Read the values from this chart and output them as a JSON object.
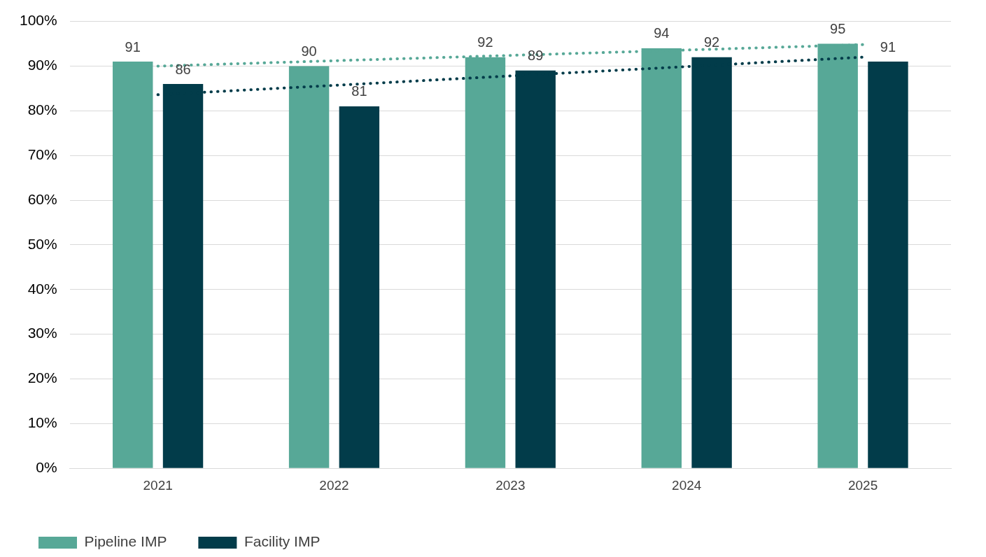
{
  "chart_data": {
    "type": "bar",
    "categories": [
      "2021",
      "2022",
      "2023",
      "2024",
      "2025"
    ],
    "series": [
      {
        "name": "Pipeline IMP",
        "color": "#57a897",
        "values": [
          91,
          90,
          92,
          94,
          95
        ],
        "value_labels": [
          "91",
          "90",
          "92",
          "94",
          "95"
        ]
      },
      {
        "name": "Facility IMP",
        "color": "#023c4a",
        "values": [
          86,
          81,
          89,
          92,
          91
        ],
        "value_labels": [
          "86",
          "81",
          "89",
          "92",
          "91"
        ]
      },
      {
        "type": "line",
        "color": "#57a897",
        "values": [
          90.0,
          null,
          null,
          null,
          94.8
        ],
        "line_style": "dotted",
        "marker": "none"
      },
      {
        "type": "line",
        "color": "#023c4a",
        "values": [
          83.6,
          null,
          null,
          null,
          92.0
        ],
        "line_style": "dotted",
        "marker": "none"
      }
    ],
    "ylim": [
      0,
      100
    ],
    "yticks": [
      {
        "value": 0,
        "label": "0%"
      },
      {
        "value": 10,
        "label": "10%"
      },
      {
        "value": 20,
        "label": "20%"
      },
      {
        "value": 30,
        "label": "30%"
      },
      {
        "value": 40,
        "label": "40%"
      },
      {
        "value": 50,
        "label": "50%"
      },
      {
        "value": 60,
        "label": "60%"
      },
      {
        "value": 70,
        "label": "70%"
      },
      {
        "value": 80,
        "label": "80%"
      },
      {
        "value": 90,
        "label": "90%"
      },
      {
        "value": 100,
        "label": "100%"
      }
    ],
    "grid": "y",
    "legend": "bottom"
  }
}
